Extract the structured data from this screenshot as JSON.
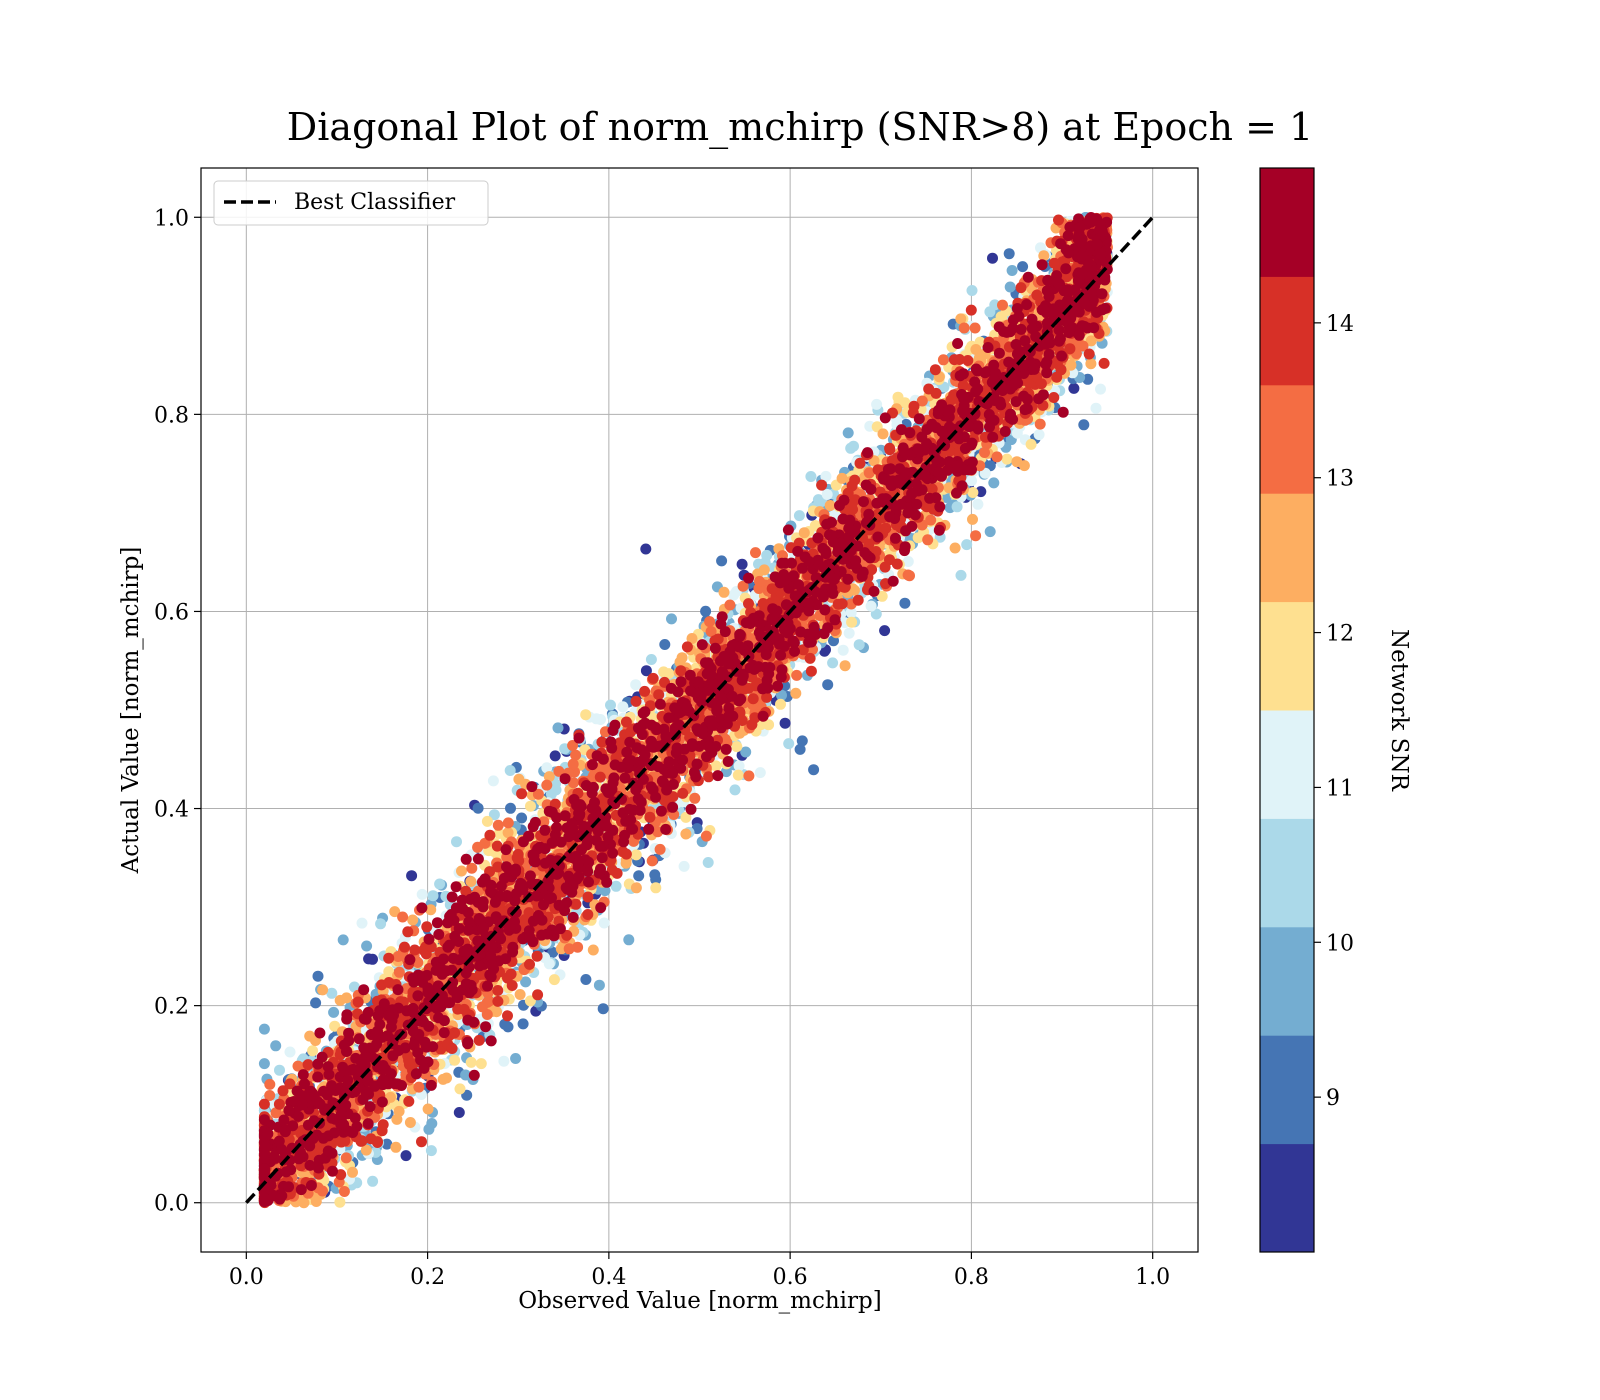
{
  "chart_data": {
    "type": "scatter",
    "title": "Diagonal Plot of norm_mchirp (SNR>8) at Epoch = 1",
    "xlabel": "Observed Value [norm_mchirp]",
    "ylabel": "Actual Value [norm_mchirp]",
    "xlim": [
      -0.05,
      1.05
    ],
    "ylim": [
      -0.05,
      1.05
    ],
    "x_ticks": [
      "0.0",
      "0.2",
      "0.4",
      "0.6",
      "0.8",
      "1.0"
    ],
    "y_ticks": [
      "0.0",
      "0.2",
      "0.4",
      "0.6",
      "0.8",
      "1.0"
    ],
    "grid": true,
    "legend": {
      "placement": "top-left",
      "entries": [
        "Best Classifier"
      ]
    },
    "reference_line": {
      "name": "Best Classifier",
      "x": [
        0,
        1
      ],
      "y": [
        0,
        1
      ],
      "style": "dashed",
      "color": "#000000"
    },
    "colorbar": {
      "label": "Network SNR",
      "range": [
        8,
        15
      ],
      "ticks": [
        "9",
        "10",
        "11",
        "12",
        "13",
        "14"
      ],
      "colors": [
        "#313695",
        "#4575b4",
        "#74add1",
        "#abd9e9",
        "#e0f3f8",
        "#fee090",
        "#fdae61",
        "#f46d43",
        "#d73027",
        "#a50026"
      ]
    },
    "scatter_description_values": {
      "observed_range": [
        0.02,
        0.95
      ],
      "actual_range": [
        0.0,
        1.0
      ],
      "dense_band_center_slope": 1.0,
      "approx_point_count_sampled": 9000
    }
  }
}
